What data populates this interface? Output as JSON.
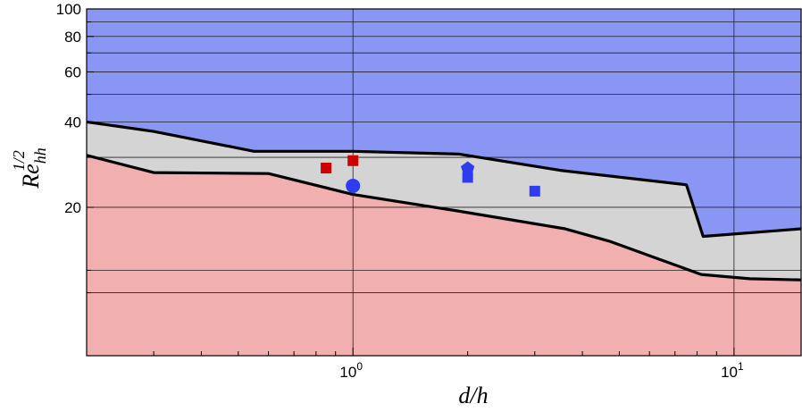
{
  "chart_data": {
    "type": "area",
    "title": "",
    "xlabel": {
      "base": "d/h"
    },
    "ylabel": {
      "base": "Re",
      "subscript": "hh",
      "superscript": "1/2"
    },
    "x_scale": "log",
    "y_scale": "log",
    "xlim": [
      0.2,
      15
    ],
    "ylim": [
      6,
      100
    ],
    "grid": true,
    "x_ticks": [
      {
        "value": 1,
        "base": "10",
        "exp": "0"
      },
      {
        "value": 10,
        "base": "10",
        "exp": "1"
      }
    ],
    "y_ticks": [
      {
        "value": 20,
        "label": "20"
      },
      {
        "value": 40,
        "label": "40"
      },
      {
        "value": 60,
        "label": "60"
      },
      {
        "value": 80,
        "label": "80"
      },
      {
        "value": 100,
        "label": "100"
      }
    ],
    "y_minor_ticks": [
      10,
      12,
      30,
      50,
      70,
      90
    ],
    "upper_boundary": {
      "x": [
        0.2,
        0.3,
        0.55,
        1.0,
        1.9,
        3.5,
        7.5,
        8.3,
        15
      ],
      "y": [
        40,
        37,
        31.5,
        31.5,
        30.8,
        27,
        24,
        15.8,
        16.8
      ]
    },
    "lower_boundary": {
      "x": [
        0.2,
        0.3,
        0.6,
        1.0,
        1.85,
        3.6,
        4.7,
        8.2,
        11,
        15
      ],
      "y": [
        30.5,
        26.5,
        26.3,
        22.2,
        19.5,
        16.8,
        15.2,
        11.6,
        11.2,
        11.1
      ]
    },
    "regions": [
      {
        "position": "above upper boundary",
        "color": "#8a96f4"
      },
      {
        "position": "between boundaries",
        "color": "#d4d4d4"
      },
      {
        "position": "below lower boundary",
        "color": "#f2afb0"
      }
    ],
    "markers": [
      {
        "x": 0.85,
        "y": 27.5,
        "shape": "square",
        "color": "#cc0000"
      },
      {
        "x": 1.0,
        "y": 29.2,
        "shape": "square",
        "color": "#cc0000"
      },
      {
        "x": 1.0,
        "y": 23.8,
        "shape": "circle",
        "color": "#2e3bf0"
      },
      {
        "x": 2.0,
        "y": 27.4,
        "shape": "pentagon",
        "color": "#2e3bf0"
      },
      {
        "x": 2.0,
        "y": 25.5,
        "shape": "square",
        "color": "#2e3bf0"
      },
      {
        "x": 3.0,
        "y": 22.8,
        "shape": "square",
        "color": "#2e3bf0"
      }
    ]
  }
}
